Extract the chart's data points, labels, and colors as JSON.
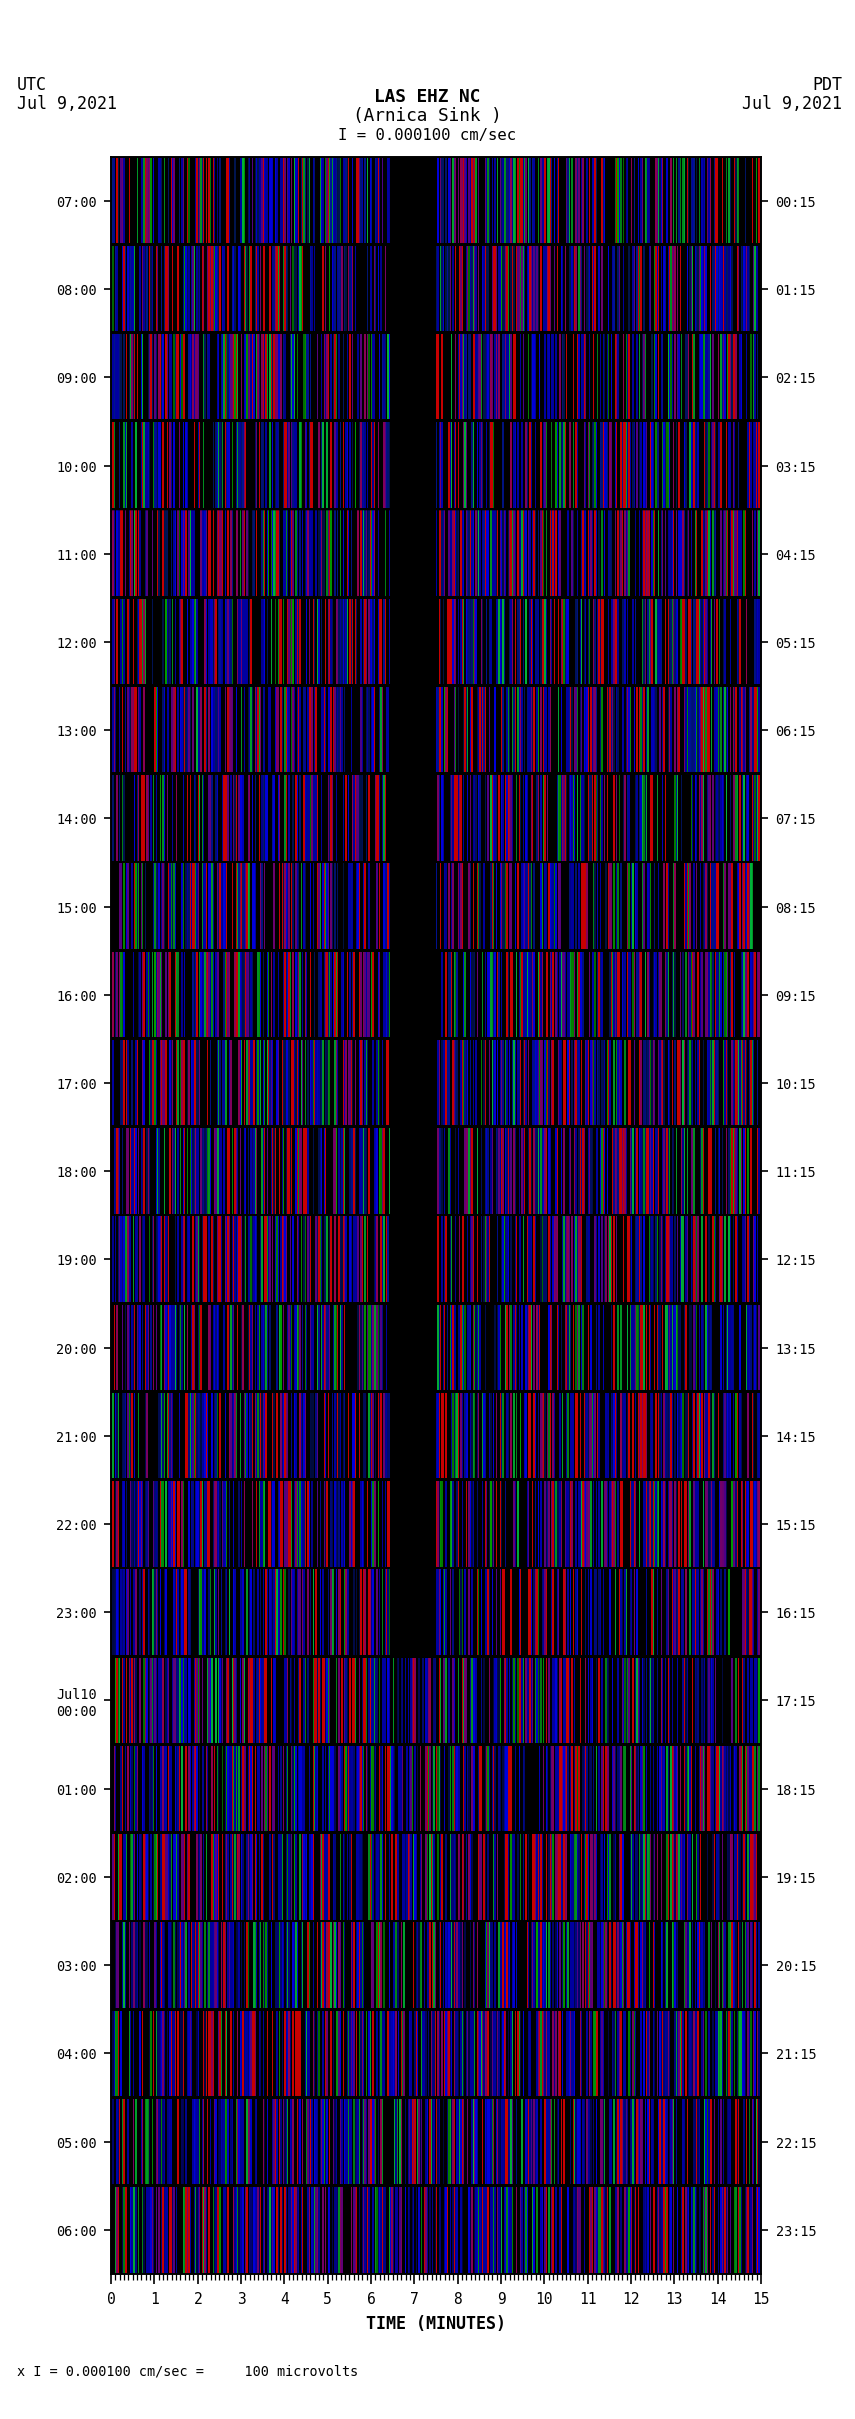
{
  "title_line1": "LAS EHZ NC",
  "title_line2": "(Arnica Sink )",
  "title_line3": "I = 0.000100 cm/sec",
  "left_label_line1": "UTC",
  "left_label_line2": "Jul 9,2021",
  "right_label_line1": "PDT",
  "right_label_line2": "Jul 9,2021",
  "xlabel": "TIME (MINUTES)",
  "bottom_note": "x I = 0.000100 cm/sec =     100 microvolts",
  "xlim": [
    0,
    15
  ],
  "xticks": [
    0,
    1,
    2,
    3,
    4,
    5,
    6,
    7,
    8,
    9,
    10,
    11,
    12,
    13,
    14,
    15
  ],
  "ytick_labels_left": [
    "07:00",
    "08:00",
    "09:00",
    "10:00",
    "11:00",
    "12:00",
    "13:00",
    "14:00",
    "15:00",
    "16:00",
    "17:00",
    "18:00",
    "19:00",
    "20:00",
    "21:00",
    "22:00",
    "23:00",
    "Jul10\n00:00",
    "01:00",
    "02:00",
    "03:00",
    "04:00",
    "05:00",
    "06:00"
  ],
  "ytick_labels_right": [
    "00:15",
    "01:15",
    "02:15",
    "03:15",
    "04:15",
    "05:15",
    "06:15",
    "07:15",
    "08:15",
    "09:15",
    "10:15",
    "11:15",
    "12:15",
    "13:15",
    "14:15",
    "15:15",
    "16:15",
    "17:15",
    "18:15",
    "19:15",
    "20:15",
    "21:15",
    "22:15",
    "23:15"
  ],
  "num_rows": 24,
  "figsize": [
    5.7,
    16.13
  ],
  "dpi": 150,
  "font_family": "monospace"
}
